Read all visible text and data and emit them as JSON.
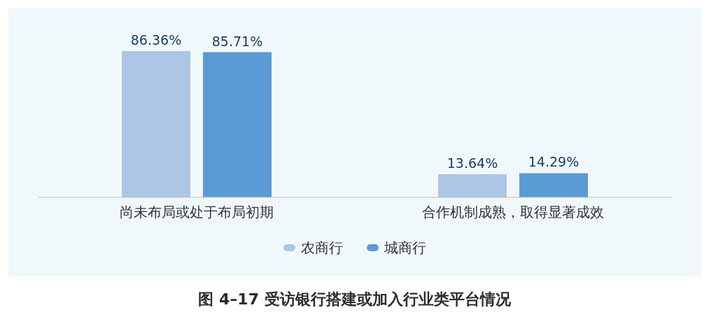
{
  "chart_data": {
    "type": "bar",
    "title": "图 4–17 受访银行搭建或加入行业类平台情况",
    "categories": [
      "尚未布局或处于布局初期",
      "合作机制成熟，取得显著成效"
    ],
    "series": [
      {
        "name": "农商行",
        "color": "#adc6e5",
        "values": [
          86.36,
          13.64
        ],
        "value_labels": [
          "86.36%",
          "13.64%"
        ]
      },
      {
        "name": "城商行",
        "color": "#5b9bd5",
        "values": [
          85.71,
          14.29
        ],
        "value_labels": [
          "85.71%",
          "14.29%"
        ]
      }
    ],
    "legend": "bottom"
  }
}
